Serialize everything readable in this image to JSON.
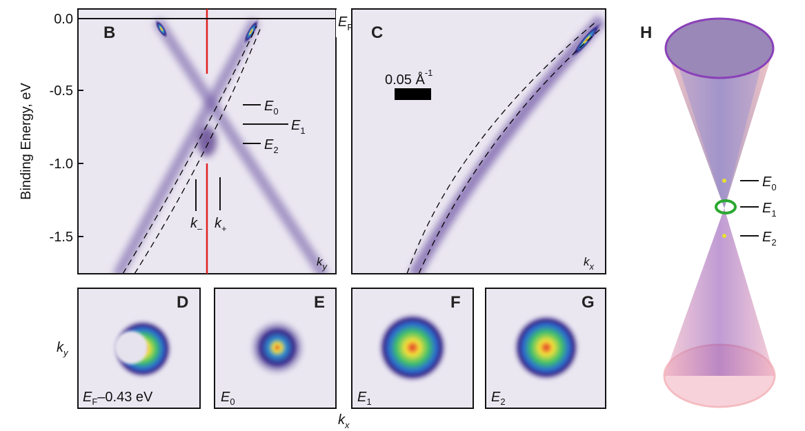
{
  "axis": {
    "label": "Binding Energy, eV",
    "ticks": [
      "0.0",
      "-0.5",
      "-1.0",
      "-1.5"
    ]
  },
  "panel_labels": [
    "B",
    "C",
    "D",
    "E",
    "F",
    "G",
    "H"
  ],
  "fermi": {
    "main": "E",
    "sub": "F"
  },
  "scale_bar": {
    "main": "0.05 Å",
    "sup": "-1"
  },
  "energies": [
    {
      "main": "E",
      "sub": "0"
    },
    {
      "main": "E",
      "sub": "1"
    },
    {
      "main": "E",
      "sub": "2"
    }
  ],
  "momenta": [
    {
      "main": "k",
      "sub": "–"
    },
    {
      "main": "k",
      "sub": "+"
    }
  ],
  "ky": {
    "main": "k",
    "sub": "y"
  },
  "kx": {
    "main": "k",
    "sub": "x"
  },
  "map_labels": [
    {
      "main": "E",
      "sub": "F",
      "rest": "–0.43 eV"
    },
    {
      "main": "E",
      "sub": "0"
    },
    {
      "main": "E",
      "sub": "1"
    },
    {
      "main": "E",
      "sub": "2"
    }
  ]
}
